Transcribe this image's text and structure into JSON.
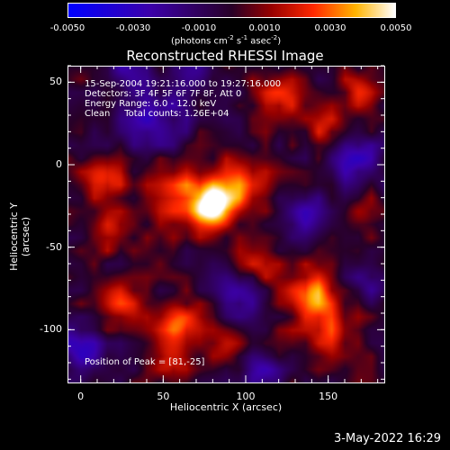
{
  "colorbar": {
    "min": -0.005,
    "max": 0.005,
    "tick_labels": [
      "-0.0050",
      "-0.0030",
      "-0.0010",
      "0.0010",
      "0.0030",
      "0.0050"
    ],
    "tick_values": [
      -0.005,
      -0.003,
      -0.001,
      0.001,
      0.003,
      0.005
    ],
    "unit_prefix": "(photons cm",
    "unit_exp1": "-2",
    "unit_mid": " s",
    "unit_exp2": "-1",
    "unit_mid2": " asec",
    "unit_exp3": "-2",
    "unit_suffix": ")"
  },
  "chart_data": {
    "type": "heatmap",
    "title": "Reconstructed RHESSI Image",
    "xlabel": "Heliocentric X (arcsec)",
    "ylabel": "Heliocentric Y (arcsec)",
    "xlim": [
      -8,
      184
    ],
    "ylim": [
      -132,
      60
    ],
    "x_ticks": [
      0,
      50,
      100,
      150
    ],
    "y_ticks": [
      50,
      0,
      -50,
      -100
    ],
    "annotations": [
      "15-Sep-2004 19:21:16.000 to 19:27:16.000",
      "Detectors: 3F 4F 5F 6F 7F 8F, Att 0",
      "Energy Range: 6.0 - 12.0 keV",
      "Clean     Total counts: 1.26E+04"
    ],
    "peak_label": "Position of Peak = [81,-25]",
    "peak": [
      81,
      -25
    ],
    "sources": [
      {
        "x": 81,
        "y": -25,
        "intensity": 1.0,
        "sigma": 9
      },
      {
        "x": 62,
        "y": -18,
        "intensity": 0.55,
        "sigma": 14
      },
      {
        "x": 100,
        "y": -12,
        "intensity": 0.5,
        "sigma": 12
      },
      {
        "x": 138,
        "y": -78,
        "intensity": 0.7,
        "sigma": 10
      },
      {
        "x": 150,
        "y": -100,
        "intensity": 0.45,
        "sigma": 12
      },
      {
        "x": 60,
        "y": -95,
        "intensity": 0.6,
        "sigma": 9
      },
      {
        "x": 55,
        "y": -118,
        "intensity": 0.5,
        "sigma": 8
      },
      {
        "x": 15,
        "y": -8,
        "intensity": 0.5,
        "sigma": 9
      },
      {
        "x": 20,
        "y": -40,
        "intensity": 0.4,
        "sigma": 9
      },
      {
        "x": 22,
        "y": -85,
        "intensity": 0.45,
        "sigma": 10
      },
      {
        "x": 120,
        "y": 40,
        "intensity": 0.45,
        "sigma": 10
      },
      {
        "x": 150,
        "y": 20,
        "intensity": 0.4,
        "sigma": 9
      },
      {
        "x": 168,
        "y": 45,
        "intensity": 0.35,
        "sigma": 8
      },
      {
        "x": 108,
        "y": -62,
        "intensity": 0.35,
        "sigma": 10
      },
      {
        "x": 90,
        "y": -110,
        "intensity": 0.3,
        "sigma": 9
      },
      {
        "x": 170,
        "y": -30,
        "intensity": 0.3,
        "sigma": 9
      }
    ],
    "negatives": [
      {
        "x": 45,
        "y": 28,
        "intensity": 0.5,
        "sigma": 14
      },
      {
        "x": 165,
        "y": 2,
        "intensity": 0.55,
        "sigma": 12
      },
      {
        "x": 95,
        "y": -78,
        "intensity": 0.55,
        "sigma": 10
      },
      {
        "x": 0,
        "y": -112,
        "intensity": 0.55,
        "sigma": 12
      },
      {
        "x": 135,
        "y": -30,
        "intensity": 0.4,
        "sigma": 10
      },
      {
        "x": 25,
        "y": 58,
        "intensity": 0.4,
        "sigma": 10
      },
      {
        "x": 70,
        "y": 55,
        "intensity": 0.35,
        "sigma": 10
      },
      {
        "x": 110,
        "y": -125,
        "intensity": 0.45,
        "sigma": 9
      },
      {
        "x": 175,
        "y": -70,
        "intensity": 0.35,
        "sigma": 9
      }
    ]
  },
  "footer": {
    "timestamp": "3-May-2022 16:29"
  }
}
